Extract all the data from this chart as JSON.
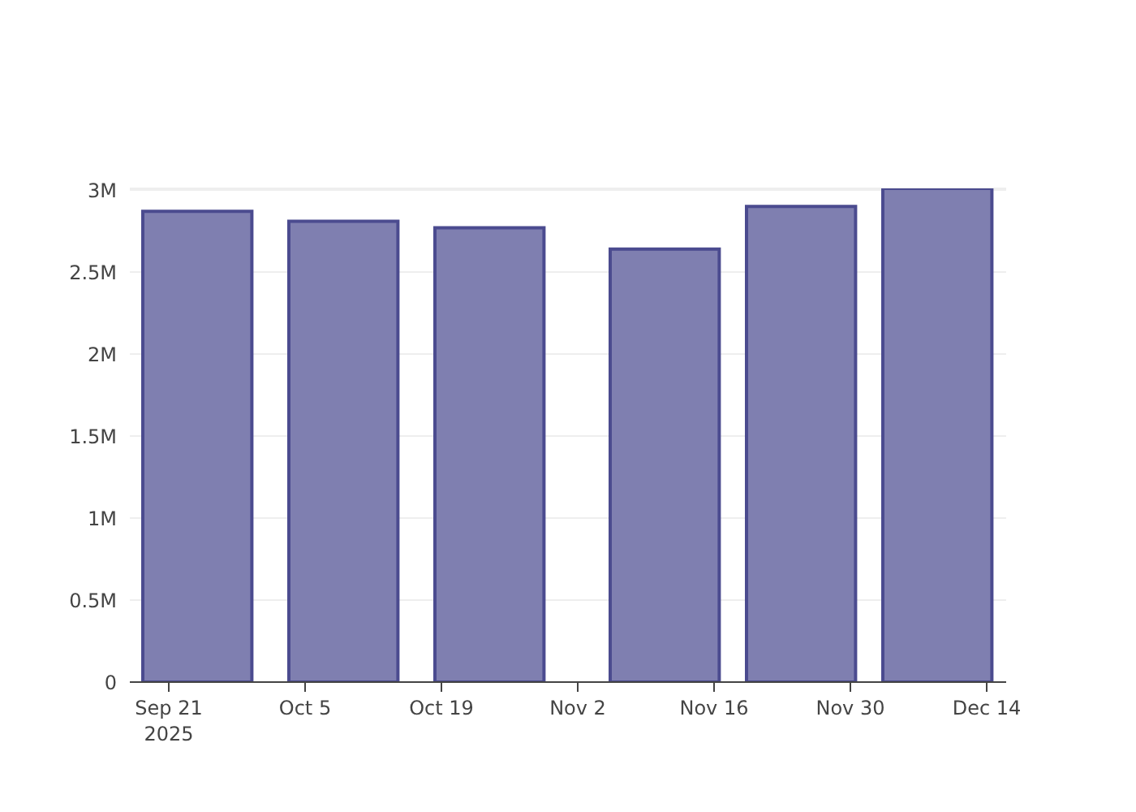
{
  "chart_data": {
    "type": "bar",
    "x": [
      "2025-09-24",
      "2025-10-09",
      "2025-10-24",
      "2025-11-11",
      "2025-11-25",
      "2025-12-09"
    ],
    "values": [
      2870000,
      2810000,
      2770000,
      2640000,
      2900000,
      3010000
    ],
    "color": "#7f7fb0",
    "xlim": [
      "2025-09-17",
      "2025-12-16"
    ],
    "xticks": [
      {
        "value": "2025-09-21",
        "label": "Sep 21\n2025"
      },
      {
        "value": "2025-10-05",
        "label": "Oct 5"
      },
      {
        "value": "2025-10-19",
        "label": "Oct 19"
      },
      {
        "value": "2025-11-02",
        "label": "Nov 2"
      },
      {
        "value": "2025-11-16",
        "label": "Nov 16"
      },
      {
        "value": "2025-11-30",
        "label": "Nov 30"
      },
      {
        "value": "2025-12-14",
        "label": "Dec 14"
      }
    ],
    "ylim": [
      0,
      3010000
    ],
    "yticks": [
      0,
      {
        "value": 500000,
        "label": "0.5M"
      },
      {
        "value": 1000000,
        "label": "1M"
      },
      {
        "value": 1500000,
        "label": "1.5M"
      },
      {
        "value": 2000000,
        "label": "2M"
      },
      {
        "value": 2500000,
        "label": "2.5M"
      },
      {
        "value": 3000000,
        "label": "3M"
      }
    ],
    "grid": "y"
  }
}
